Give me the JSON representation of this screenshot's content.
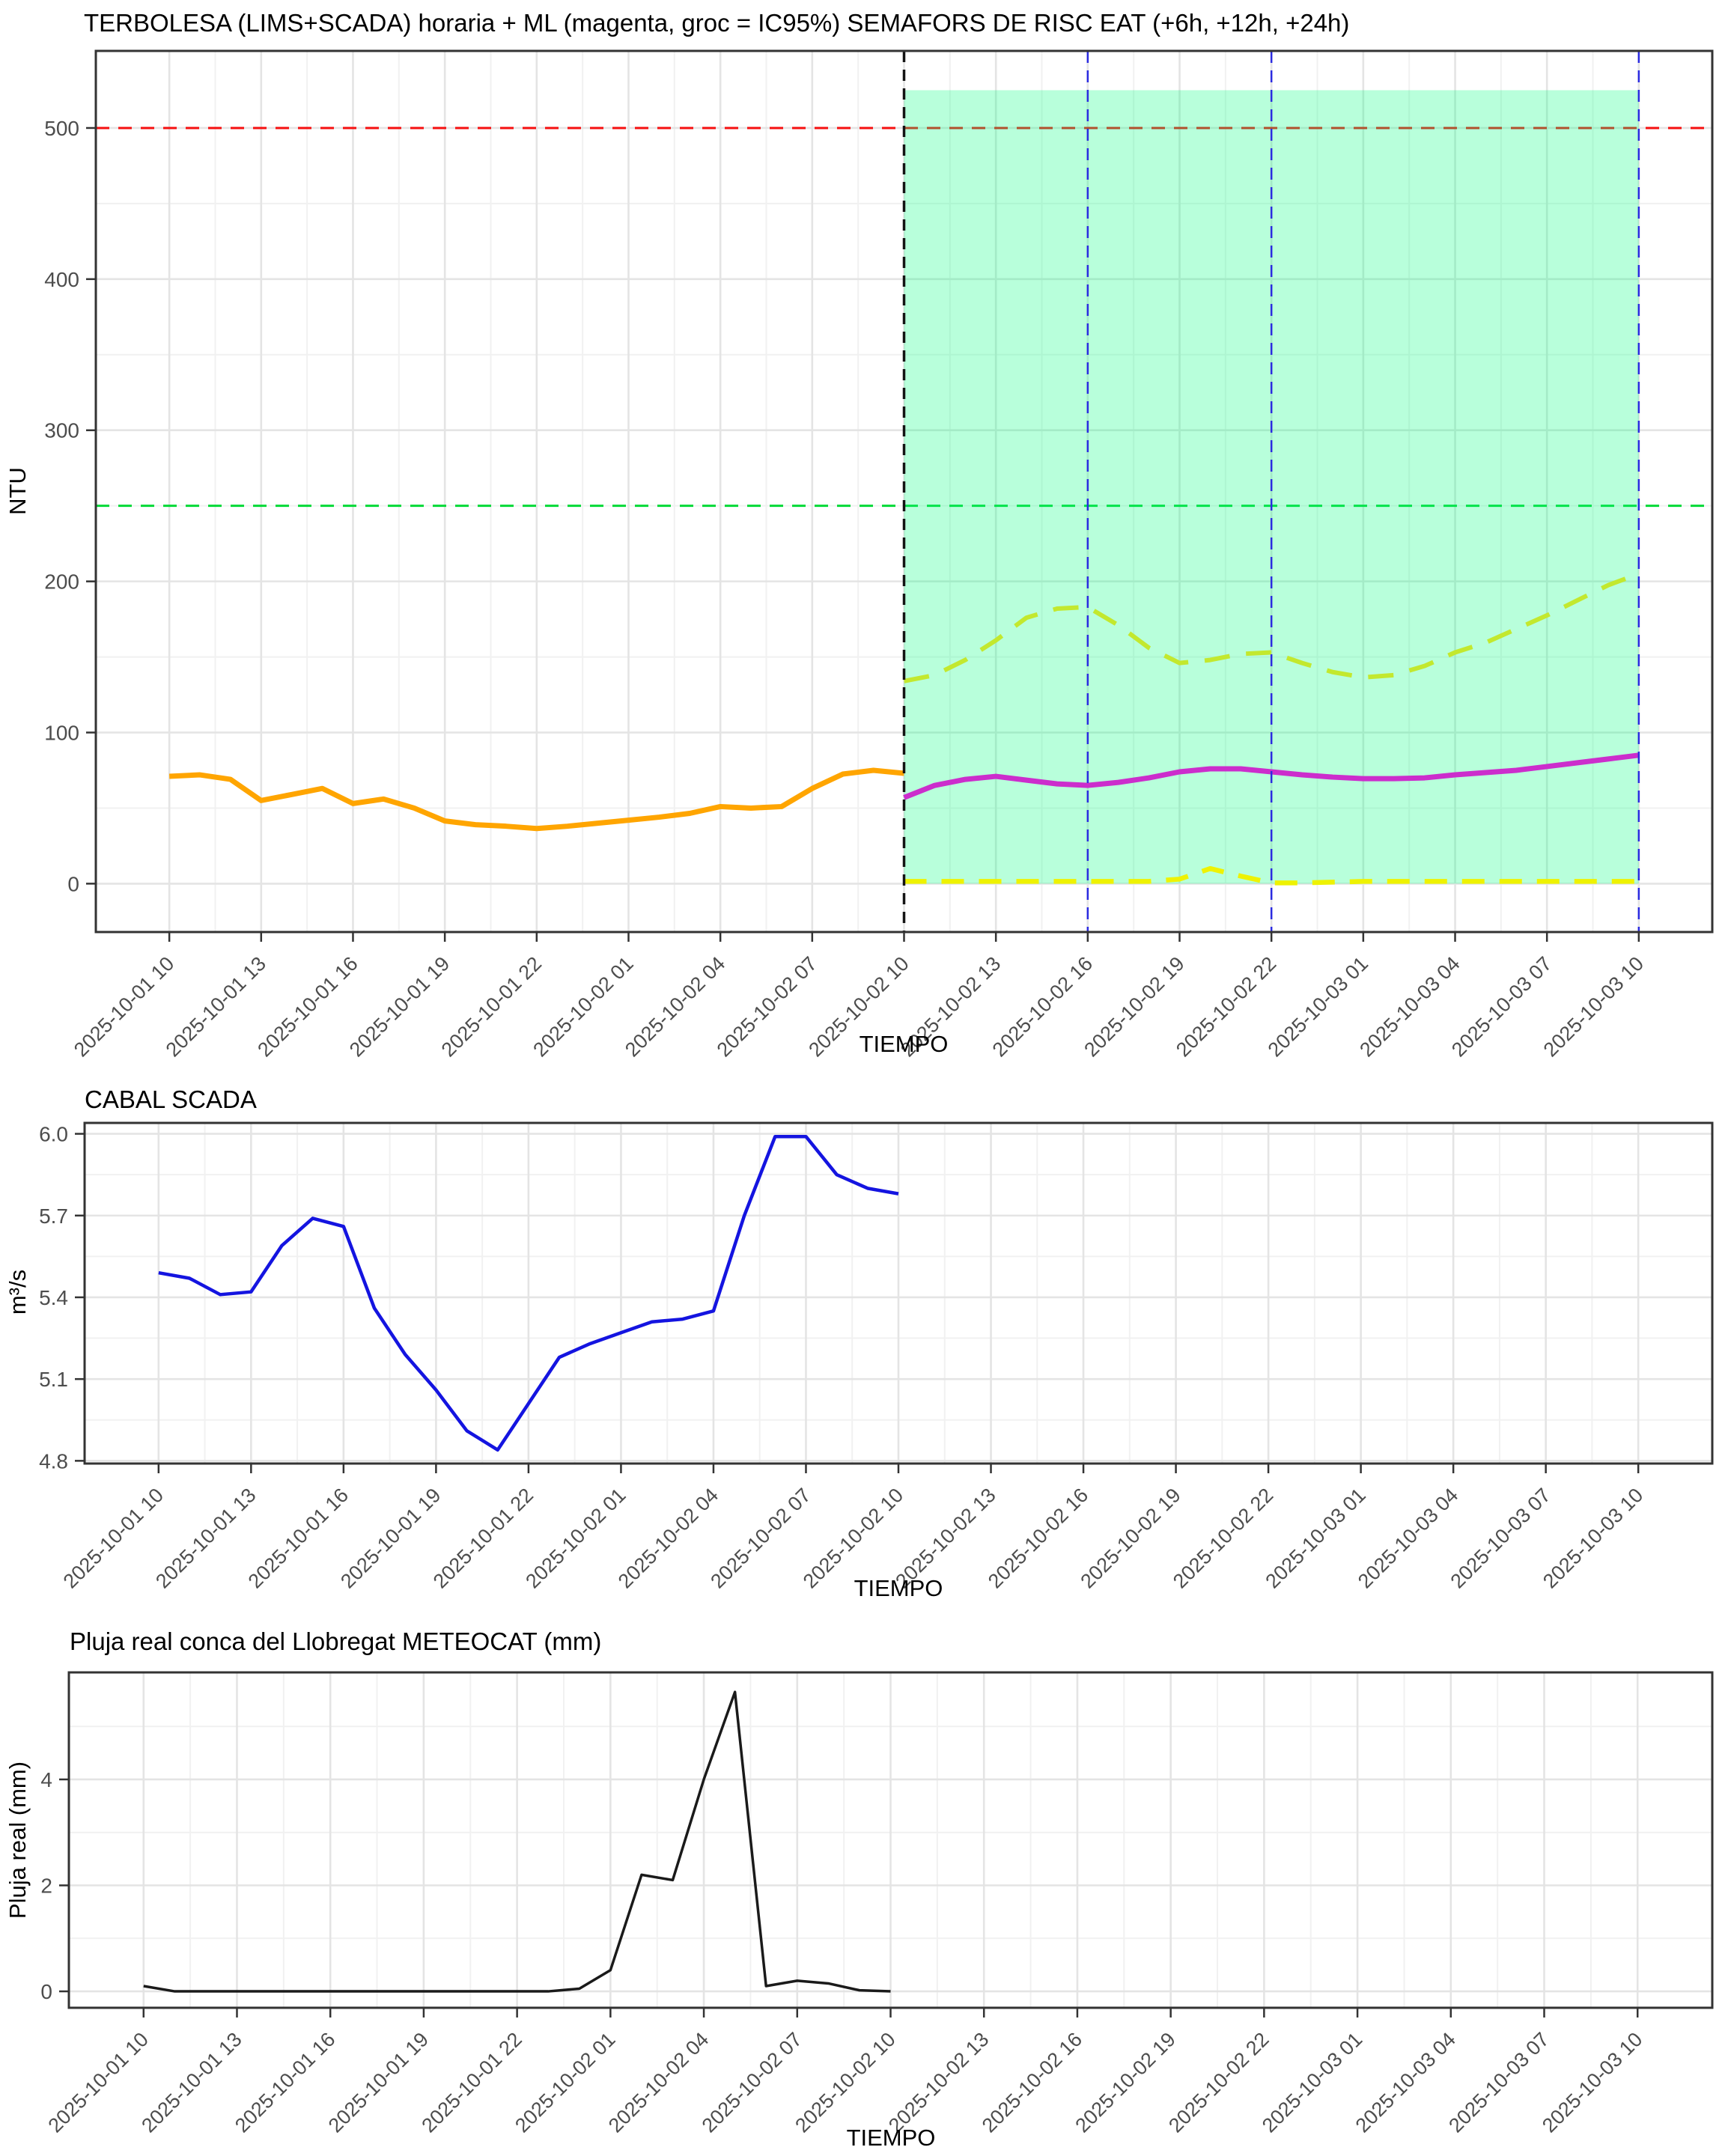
{
  "page": {
    "background": "#ffffff"
  },
  "chart_data": [
    {
      "type": "line",
      "title": "TERBOLESA (LIMS+SCADA) horaria + ML (magenta, groc = IC95%) SEMAFORS DE RISC EAT (+6h, +12h, +24h)",
      "xlabel": "TIEMPO",
      "ylabel": "NTU",
      "x_start": "2025-10-01 10",
      "x_hours_total": 48,
      "x_tick_step_hours": 3,
      "x_tick_labels": [
        "2025-10-01 10",
        "2025-10-01 13",
        "2025-10-01 16",
        "2025-10-01 19",
        "2025-10-01 22",
        "2025-10-02 01",
        "2025-10-02 04",
        "2025-10-02 07",
        "2025-10-02 10",
        "2025-10-02 13",
        "2025-10-02 16",
        "2025-10-02 19",
        "2025-10-02 22",
        "2025-10-03 01",
        "2025-10-03 04",
        "2025-10-03 07",
        "2025-10-03 10"
      ],
      "ylim": [
        -32,
        551
      ],
      "yticks": [
        0,
        100,
        200,
        300,
        400,
        500
      ],
      "yticks_minor": [
        50,
        150,
        250,
        350,
        450
      ],
      "grid": true,
      "legend_position": "none",
      "hlines": [
        {
          "name": "llindar-risc-alt",
          "y": 500,
          "color": "#f50f0f",
          "dash": [
            18,
            12
          ],
          "width": 3
        },
        {
          "name": "llindar-risc-moderat",
          "y": 250,
          "color": "#00d936",
          "dash": [
            18,
            12
          ],
          "width": 3
        }
      ],
      "vlines": [
        {
          "name": "ara-inici-prediccio",
          "hour": 24,
          "at_label": "2025-10-02 10",
          "color": "#141414",
          "dash": [
            15,
            10
          ],
          "width": 3.5
        },
        {
          "name": "horitzo-mes-6h",
          "hour": 30,
          "at_label": "2025-10-02 16",
          "color": "#2b2be0",
          "dash": [
            16,
            10
          ],
          "width": 2.5
        },
        {
          "name": "horitzo-mes-12h",
          "hour": 36,
          "at_label": "2025-10-02 22",
          "color": "#2b2be0",
          "dash": [
            16,
            10
          ],
          "width": 2.5
        },
        {
          "name": "horitzo-mes-24h",
          "hour": 48,
          "at_label": "2025-10-03 10",
          "color": "#2b2be0",
          "dash": [
            16,
            10
          ],
          "width": 2.5
        }
      ],
      "region": {
        "name": "zona-prediccio",
        "hour0": 24,
        "hour1": 48,
        "y0": 0,
        "y1": 525,
        "fill": "rgba(0,255,127,0.28)"
      },
      "series": [
        {
          "name": "terbolesa-observada",
          "color": "#ffa500",
          "width": 7,
          "dash": null,
          "start_hour": 0,
          "values": [
            71,
            72,
            69,
            55,
            59,
            63,
            53,
            56,
            50,
            41.5,
            39,
            38,
            36.5,
            38,
            40,
            42,
            44,
            46.5,
            51,
            50,
            51,
            63,
            72.5,
            75,
            73
          ]
        },
        {
          "name": "prediccio-ml-magenta",
          "color": "#cc2dcc",
          "width": 7,
          "dash": null,
          "start_hour": 24,
          "values": [
            57,
            65,
            69,
            71,
            68.5,
            66,
            65,
            67,
            70,
            74,
            76,
            76,
            74,
            72,
            70.5,
            69.5,
            69.5,
            70,
            72,
            73.5,
            75,
            77.5,
            80,
            82.5,
            85
          ]
        },
        {
          "name": "ic95-superior-groc",
          "color": "#c3e82e",
          "width": 6,
          "dash": [
            34,
            22
          ],
          "start_hour": 24,
          "values": [
            134,
            138,
            148,
            161,
            176,
            182,
            183,
            171,
            156,
            146,
            148,
            152,
            153,
            146,
            140,
            136.5,
            138,
            144,
            153,
            159.5,
            168.5,
            177.5,
            187.5,
            197.5,
            205
          ]
        },
        {
          "name": "ic95-inferior-groc",
          "color": "#eef202",
          "width": 6.5,
          "dash": [
            30,
            20
          ],
          "start_hour": 24,
          "values": [
            1.5,
            1.5,
            1.5,
            1.5,
            1.5,
            1.5,
            1.5,
            1.5,
            1.5,
            3,
            10,
            5,
            0.5,
            0.5,
            1,
            1.5,
            1.5,
            1.5,
            1.5,
            1.5,
            1.5,
            1.5,
            1.5,
            1.5,
            1.5
          ]
        }
      ]
    },
    {
      "type": "line",
      "title": "CABAL SCADA",
      "xlabel": "TIEMPO",
      "ylabel": "m³/s",
      "x_start": "2025-10-01 10",
      "x_hours_total": 48,
      "x_tick_step_hours": 3,
      "x_tick_labels": [
        "2025-10-01 10",
        "2025-10-01 13",
        "2025-10-01 16",
        "2025-10-01 19",
        "2025-10-01 22",
        "2025-10-02 01",
        "2025-10-02 04",
        "2025-10-02 07",
        "2025-10-02 10",
        "2025-10-02 13",
        "2025-10-02 16",
        "2025-10-02 19",
        "2025-10-02 22",
        "2025-10-03 01",
        "2025-10-03 04",
        "2025-10-03 07",
        "2025-10-03 10"
      ],
      "ylim": [
        4.79,
        6.04
      ],
      "yticks": [
        4.8,
        5.1,
        5.4,
        5.7,
        6.0
      ],
      "yticks_minor": [
        4.95,
        5.25,
        5.55,
        5.85
      ],
      "ytick_decimals": 1,
      "grid": true,
      "legend_position": "none",
      "hlines": [],
      "vlines": [],
      "region": null,
      "series": [
        {
          "name": "cabal-scada",
          "color": "#1414e0",
          "width": 4.5,
          "dash": null,
          "start_hour": 0,
          "values": [
            5.49,
            5.47,
            5.41,
            5.42,
            5.59,
            5.69,
            5.66,
            5.36,
            5.19,
            5.06,
            4.91,
            4.84,
            5.01,
            5.18,
            5.23,
            5.27,
            5.31,
            5.32,
            5.35,
            5.7,
            5.99,
            5.99,
            5.85,
            5.8,
            5.78
          ]
        }
      ]
    },
    {
      "type": "line",
      "title": "Pluja real conca del Llobregat METEOCAT (mm)",
      "xlabel": "TIEMPO",
      "ylabel": "Pluja real (mm)",
      "x_start": "2025-10-01 10",
      "x_hours_total": 48,
      "x_tick_step_hours": 3,
      "x_tick_labels": [
        "2025-10-01 10",
        "2025-10-01 13",
        "2025-10-01 16",
        "2025-10-01 19",
        "2025-10-01 22",
        "2025-10-02 01",
        "2025-10-02 04",
        "2025-10-02 07",
        "2025-10-02 10",
        "2025-10-02 13",
        "2025-10-02 16",
        "2025-10-02 19",
        "2025-10-02 22",
        "2025-10-03 01",
        "2025-10-03 04",
        "2025-10-03 07",
        "2025-10-03 10"
      ],
      "ylim": [
        -0.31,
        6.02
      ],
      "yticks": [
        0,
        2,
        4
      ],
      "yticks_minor": [
        1,
        3,
        5
      ],
      "grid": true,
      "legend_position": "none",
      "hlines": [],
      "vlines": [],
      "region": null,
      "series": [
        {
          "name": "pluja-real",
          "color": "#1a1a1a",
          "width": 3.5,
          "dash": null,
          "start_hour": 0,
          "values": [
            0.1,
            0,
            0,
            0,
            0,
            0,
            0,
            0,
            0,
            0,
            0,
            0,
            0,
            0,
            0.05,
            0.4,
            2.2,
            2.1,
            4.0,
            5.65,
            0.1,
            0.2,
            0.15,
            0.02,
            0
          ]
        }
      ]
    }
  ],
  "theme": {
    "grid_major_color": "#e4e4e4",
    "grid_minor_color": "#f1f1f1",
    "panel_border_color": "#333333",
    "tick_mark_color": "#333333",
    "tick_label_color": "#4d4d4d"
  }
}
